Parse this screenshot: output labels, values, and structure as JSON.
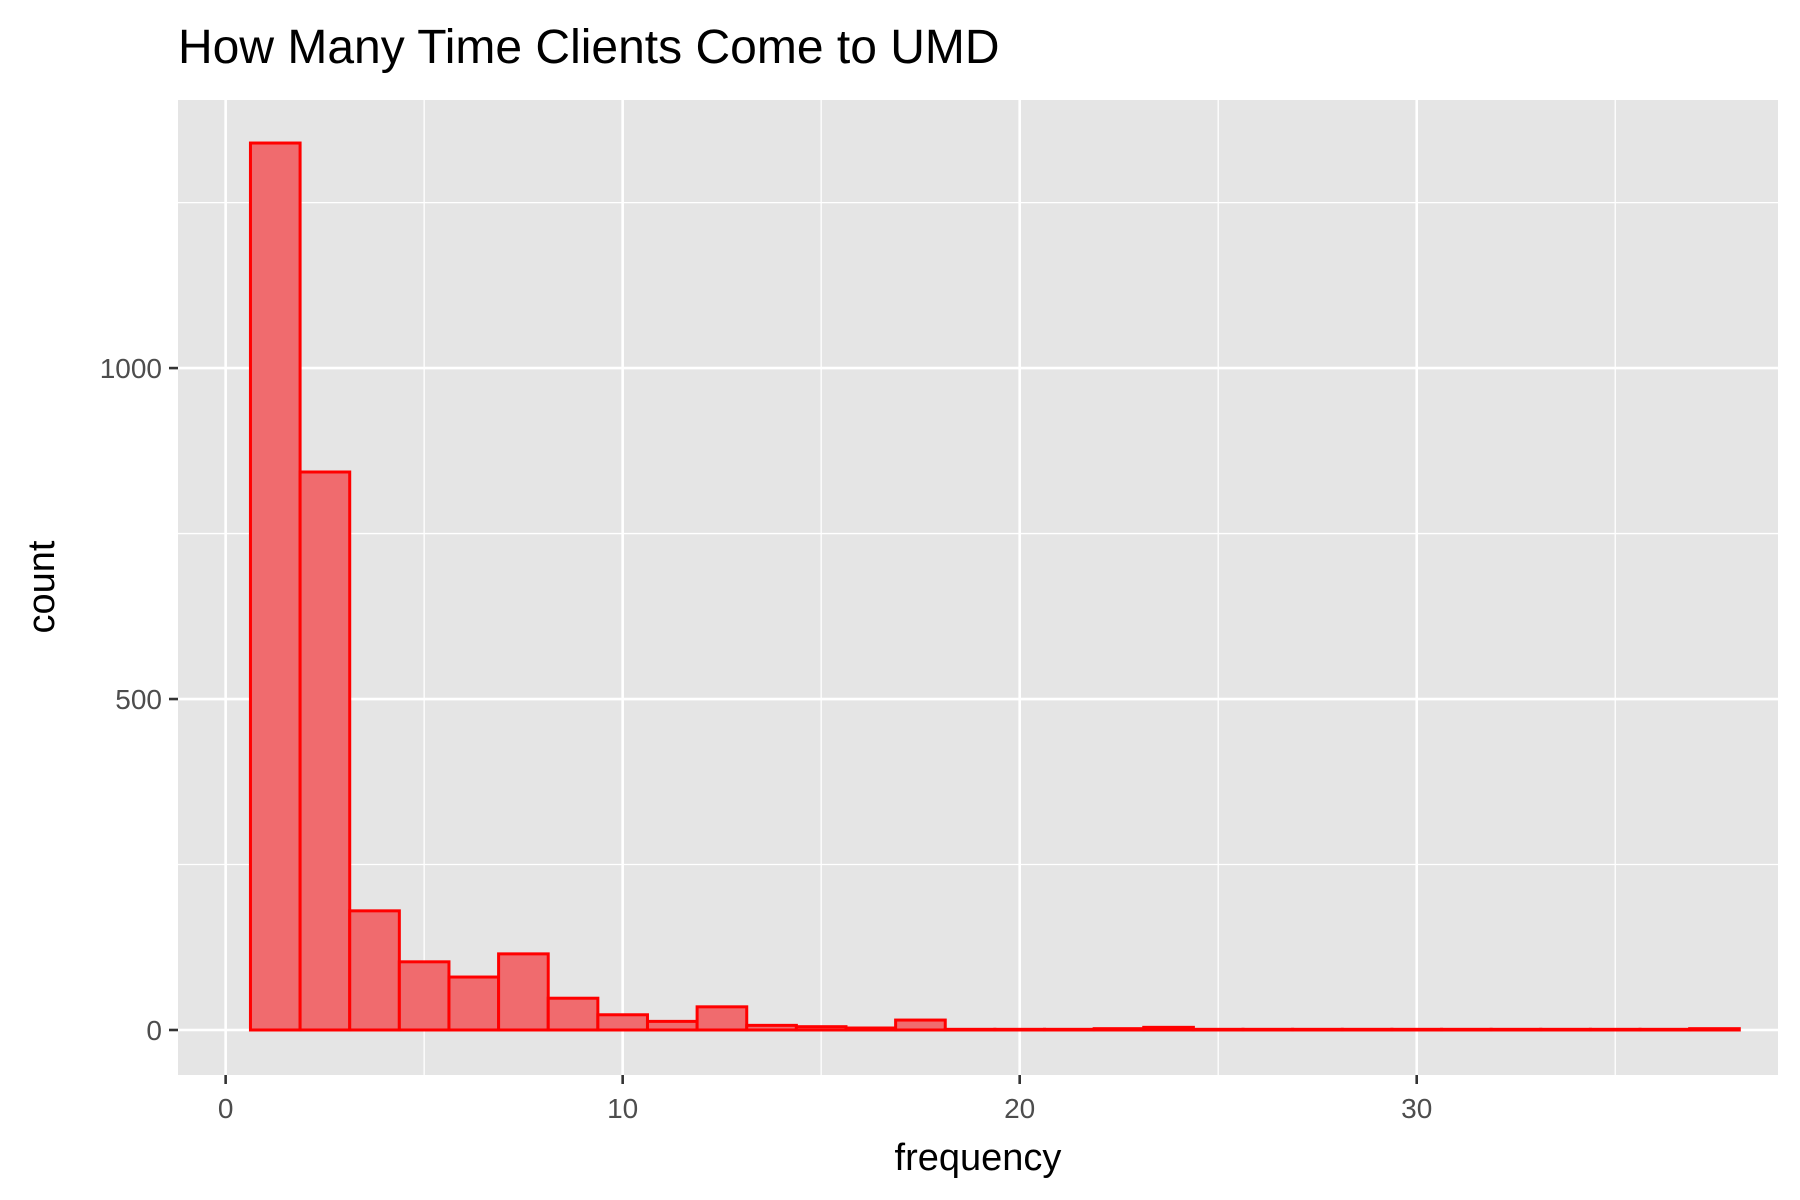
{
  "chart_data": {
    "type": "bar",
    "subtype": "histogram",
    "title": "How Many Time Clients Come to UMD",
    "xlabel": "frequency",
    "ylabel": "count",
    "xlim": [
      -1.2,
      39.1
    ],
    "ylim": [
      -68,
      1405
    ],
    "x_ticks": [
      0,
      10,
      20,
      30
    ],
    "y_ticks": [
      0,
      500,
      1000
    ],
    "x_tick_labels": [
      "0",
      "10",
      "20",
      "30"
    ],
    "y_tick_labels": [
      "0",
      "500",
      "1000"
    ],
    "grid": true,
    "panel_background": "#e5e5e5",
    "bar_fill": "#f06b6e",
    "bar_outline": "#ff0000",
    "bin_start": 0.625,
    "bin_width": 1.25,
    "values": [
      1340,
      843,
      180,
      103,
      80,
      115,
      48,
      23,
      13,
      35,
      7,
      5,
      3,
      15,
      1,
      1,
      1,
      2,
      4,
      1,
      1,
      1,
      1,
      1,
      1,
      1,
      1,
      1,
      1,
      2
    ]
  }
}
